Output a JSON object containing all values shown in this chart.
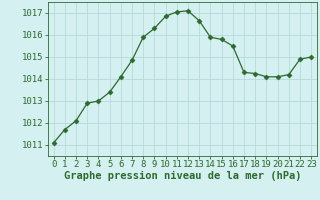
{
  "x": [
    0,
    1,
    2,
    3,
    4,
    5,
    6,
    7,
    8,
    9,
    10,
    11,
    12,
    13,
    14,
    15,
    16,
    17,
    18,
    19,
    20,
    21,
    22,
    23
  ],
  "y": [
    1011.1,
    1011.7,
    1012.1,
    1012.9,
    1013.0,
    1013.4,
    1014.1,
    1014.85,
    1015.9,
    1016.3,
    1016.85,
    1017.05,
    1017.1,
    1016.65,
    1015.9,
    1015.8,
    1015.5,
    1014.3,
    1014.25,
    1014.1,
    1014.1,
    1014.2,
    1014.9,
    1015.0
  ],
  "line_color": "#2d6a2d",
  "marker": "D",
  "marker_size": 2.5,
  "bg_color": "#d4f0f0",
  "grid_color": "#b8dada",
  "xlabel": "Graphe pression niveau de la mer (hPa)",
  "xlabel_fontsize": 7.5,
  "ylabel_ticks": [
    1011,
    1012,
    1013,
    1014,
    1015,
    1016,
    1017
  ],
  "xlim": [
    -0.5,
    23.5
  ],
  "ylim": [
    1010.5,
    1017.5
  ],
  "tick_fontsize": 6.5,
  "xtick_labels": [
    "0",
    "1",
    "2",
    "3",
    "4",
    "5",
    "6",
    "7",
    "8",
    "9",
    "10",
    "11",
    "12",
    "13",
    "14",
    "15",
    "16",
    "17",
    "18",
    "19",
    "20",
    "21",
    "22",
    "23"
  ]
}
